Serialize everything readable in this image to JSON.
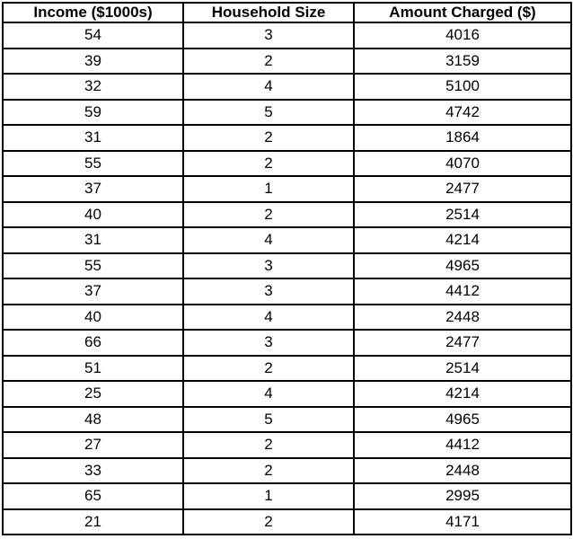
{
  "colors": {
    "border": "#000000",
    "cell_background": "#ffffff",
    "text": "#000000"
  },
  "chart_data": {
    "type": "table",
    "title": "",
    "columns": [
      "Income ($1000s)",
      "Household Size",
      "Amount Charged ($)"
    ],
    "rows": [
      [
        54,
        3,
        4016
      ],
      [
        39,
        2,
        3159
      ],
      [
        32,
        4,
        5100
      ],
      [
        59,
        5,
        4742
      ],
      [
        31,
        2,
        1864
      ],
      [
        55,
        2,
        4070
      ],
      [
        37,
        1,
        2477
      ],
      [
        40,
        2,
        2514
      ],
      [
        31,
        4,
        4214
      ],
      [
        55,
        3,
        4965
      ],
      [
        37,
        3,
        4412
      ],
      [
        40,
        4,
        2448
      ],
      [
        66,
        3,
        2477
      ],
      [
        51,
        2,
        2514
      ],
      [
        25,
        4,
        4214
      ],
      [
        48,
        5,
        4965
      ],
      [
        27,
        2,
        4412
      ],
      [
        33,
        2,
        2448
      ],
      [
        65,
        1,
        2995
      ],
      [
        21,
        2,
        4171
      ]
    ]
  }
}
